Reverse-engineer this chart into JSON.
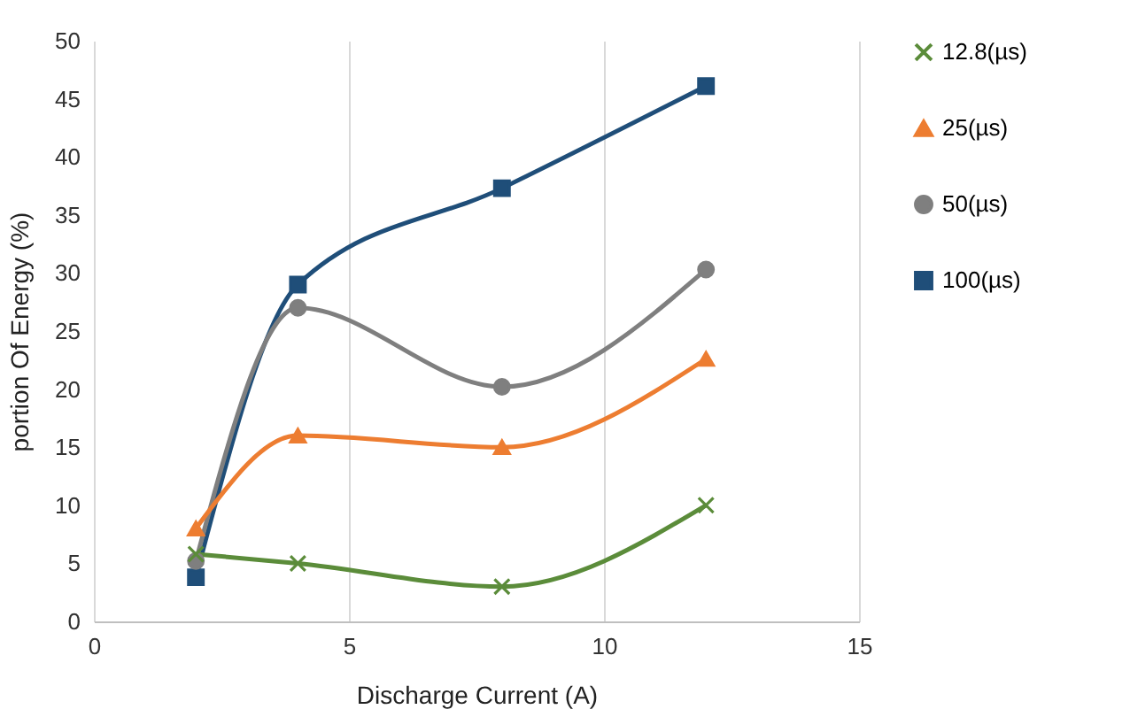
{
  "chart_data": {
    "type": "line",
    "xlabel": "Discharge Current (A)",
    "ylabel": "portion Of Energy (%)",
    "xlim": [
      0,
      15
    ],
    "xticks": [
      0,
      5,
      10,
      15
    ],
    "ylim": [
      0,
      50
    ],
    "yticks": [
      0,
      5,
      10,
      15,
      20,
      25,
      30,
      35,
      40,
      45,
      50
    ],
    "grid": "x",
    "legend": "right",
    "x": [
      2,
      4,
      8,
      12
    ],
    "series": [
      {
        "name": "12.8(µs)",
        "color": "#5b8c3a",
        "marker": "cross",
        "values": [
          5.8,
          5.0,
          3.0,
          10.0
        ]
      },
      {
        "name": "25(µs)",
        "color": "#ed7d31",
        "marker": "triangle",
        "values": [
          8.0,
          16.0,
          15.0,
          22.6
        ]
      },
      {
        "name": "50(µs)",
        "color": "#7f7f7f",
        "marker": "circle",
        "values": [
          5.2,
          27.0,
          20.2,
          30.3
        ]
      },
      {
        "name": "100(µs)",
        "color": "#1f4e79",
        "marker": "square",
        "values": [
          3.8,
          29.0,
          37.3,
          46.1
        ]
      }
    ]
  }
}
